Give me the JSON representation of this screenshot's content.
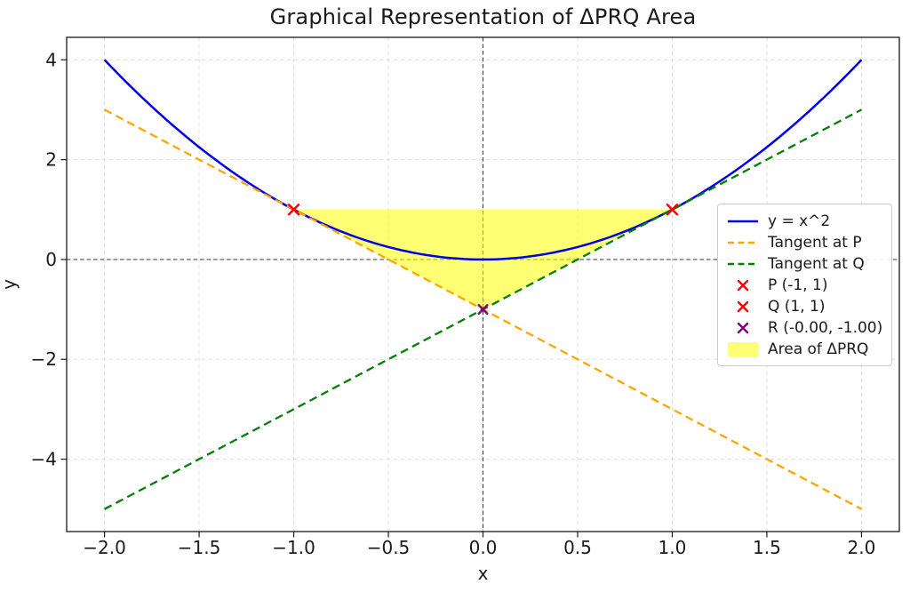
{
  "chart_data": {
    "type": "line",
    "title": "Graphical Representation of ΔPRQ Area",
    "xlabel": "x",
    "ylabel": "y",
    "xlim": [
      -2.2,
      2.2
    ],
    "ylim": [
      -5.45,
      4.45
    ],
    "grid": true,
    "zero_lines": true,
    "legend_position": "center right",
    "xticks": {
      "values": [
        -2.0,
        -1.5,
        -1.0,
        -0.5,
        0.0,
        0.5,
        1.0,
        1.5,
        2.0
      ],
      "labels": [
        "−2.0",
        "−1.5",
        "−1.0",
        "−0.5",
        "0.0",
        "0.5",
        "1.0",
        "1.5",
        "2.0"
      ]
    },
    "yticks": {
      "values": [
        -4,
        -2,
        0,
        2,
        4
      ],
      "labels": [
        "−4",
        "−2",
        "0",
        "2",
        "4"
      ]
    },
    "series": [
      {
        "name": "y = x^2",
        "kind": "quadratic",
        "coeffs": [
          1,
          0,
          0
        ],
        "x_range": [
          -2,
          2
        ],
        "color": "#0000ee",
        "dash": "solid",
        "width": 2.5
      },
      {
        "name": "Tangent at P",
        "kind": "segment",
        "equation": "y = -2x - 1",
        "points": [
          [
            -2,
            3
          ],
          [
            2,
            -5
          ]
        ],
        "color": "#ffa500",
        "dash": "dashed",
        "width": 2.3
      },
      {
        "name": "Tangent at Q",
        "kind": "segment",
        "equation": "y = 2x - 1",
        "points": [
          [
            -2,
            -5
          ],
          [
            2,
            3
          ]
        ],
        "color": "#008000",
        "dash": "dashed",
        "width": 2.3
      }
    ],
    "region": {
      "name": "Area of ΔPRQ",
      "vertices": [
        [
          -1,
          1
        ],
        [
          1,
          1
        ],
        [
          0,
          -1
        ]
      ],
      "fill": "#ffff00",
      "opacity": 0.55
    },
    "points": [
      {
        "name": "P (-1, 1)",
        "x": -1,
        "y": 1,
        "color": "#ff0000",
        "size": 5.5
      },
      {
        "name": "Q (1, 1)",
        "x": 1,
        "y": 1,
        "color": "#ff0000",
        "size": 5.5
      },
      {
        "name": "R (-0.00, -1.00)",
        "x": 0,
        "y": -1,
        "color": "#800080",
        "size": 4.8
      }
    ],
    "legend": [
      {
        "label": "y = x^2",
        "swatch": "line",
        "color": "#0000ee",
        "dash": "solid"
      },
      {
        "label": "Tangent at P",
        "swatch": "line",
        "color": "#ffa500",
        "dash": "dashed"
      },
      {
        "label": "Tangent at Q",
        "swatch": "line",
        "color": "#008000",
        "dash": "dashed"
      },
      {
        "label": "P (-1, 1)",
        "swatch": "marker-x",
        "color": "#ff0000"
      },
      {
        "label": "Q (1, 1)",
        "swatch": "marker-x",
        "color": "#ff0000"
      },
      {
        "label": "R (-0.00, -1.00)",
        "swatch": "marker-x",
        "color": "#800080"
      },
      {
        "label": "Area of ΔPRQ",
        "swatch": "patch",
        "color": "#ffff00",
        "opacity": 0.55
      }
    ],
    "colors": {
      "grid": "#dcdcdc",
      "spine": "#1a1a1a",
      "zero_line": "#222222",
      "text": "#1a1a1a",
      "legend_border": "#cccccc"
    }
  }
}
